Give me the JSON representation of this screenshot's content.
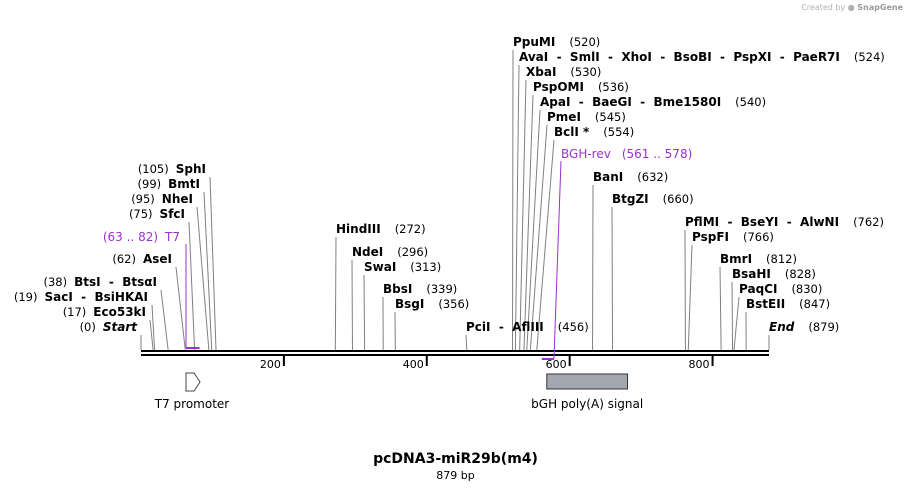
{
  "credit": {
    "prefix": "Created by",
    "brand": "SnapGene"
  },
  "plasmid": {
    "name": "pcDNA3-miR29b(m4)",
    "length_label": "879 bp"
  },
  "axis": {
    "length": 879,
    "ticks": [
      200,
      400,
      600,
      800
    ]
  },
  "sites": [
    {
      "name": "PpuMI",
      "pos": "(520)",
      "bp": 520
    },
    {
      "name": "AvaI  -  SmlI  -  XhoI  -  BsoBI  -  PspXI  -  PaeR7I",
      "pos": "(524)",
      "bp": 524
    },
    {
      "name": "XbaI",
      "pos": "(530)",
      "bp": 530
    },
    {
      "name": "PspOMI",
      "pos": "(536)",
      "bp": 536
    },
    {
      "name": "ApaI  -  BaeGI  -  Bme1580I",
      "pos": "(540)",
      "bp": 540
    },
    {
      "name": "PmeI",
      "pos": "(545)",
      "bp": 545
    },
    {
      "name": "BclI *",
      "pos": "(554)",
      "bp": 554
    },
    {
      "name": "BanI",
      "pos": "(632)",
      "bp": 632
    },
    {
      "name": "BtgZI",
      "pos": "(660)",
      "bp": 660
    },
    {
      "name": "PflMI  -  BseYI  -  AlwNI",
      "pos": "(762)",
      "bp": 762
    },
    {
      "name": "PspFI",
      "pos": "(766)",
      "bp": 766
    },
    {
      "name": "BmrI",
      "pos": "(812)",
      "bp": 812
    },
    {
      "name": "BsaHI",
      "pos": "(828)",
      "bp": 828
    },
    {
      "name": "PaqCI",
      "pos": "(830)",
      "bp": 830
    },
    {
      "name": "BstEII",
      "pos": "(847)",
      "bp": 847
    },
    {
      "name": "End",
      "pos": "(879)",
      "bp": 879
    },
    {
      "name": "HindIII",
      "pos": "(272)",
      "bp": 272
    },
    {
      "name": "NdeI",
      "pos": "(296)",
      "bp": 296
    },
    {
      "name": "SwaI",
      "pos": "(313)",
      "bp": 313
    },
    {
      "name": "BbsI",
      "pos": "(339)",
      "bp": 339
    },
    {
      "name": "BsgI",
      "pos": "(356)",
      "bp": 356
    },
    {
      "name": "PciI  -  AflIII",
      "pos": "(456)",
      "bp": 456
    },
    {
      "name": "SphI",
      "pos": "(105)",
      "bp": 105
    },
    {
      "name": "BmtI",
      "pos": "(99)",
      "bp": 99
    },
    {
      "name": "NheI",
      "pos": "(95)",
      "bp": 95
    },
    {
      "name": "SfcI",
      "pos": "(75)",
      "bp": 75
    },
    {
      "name": "AseI",
      "pos": "(62)",
      "bp": 62
    },
    {
      "name": "BtsI  -  BtsαI",
      "pos": "(38)",
      "bp": 38
    },
    {
      "name": "SacI  -  BsiHKAI",
      "pos": "(19)",
      "bp": 19
    },
    {
      "name": "Eco53kI",
      "pos": "(17)",
      "bp": 17
    },
    {
      "name": "Start",
      "pos": "(0)",
      "bp": 0
    }
  ],
  "primers": [
    {
      "name": "T7",
      "pos": "(63 .. 82)",
      "start": 63,
      "end": 82
    },
    {
      "name": "BGH-rev",
      "pos": "(561 .. 578)",
      "start": 561,
      "end": 578
    }
  ],
  "features": [
    {
      "name": "T7 promoter",
      "start": 63,
      "end": 82,
      "type": "promoter"
    },
    {
      "name": "bGH poly(A) signal",
      "start": 568,
      "end": 681,
      "type": "polyA"
    }
  ],
  "colors": {
    "primer": "#9933cc",
    "feature_fill": "#a3a8b0",
    "promoter_fill": "#ffffff"
  }
}
